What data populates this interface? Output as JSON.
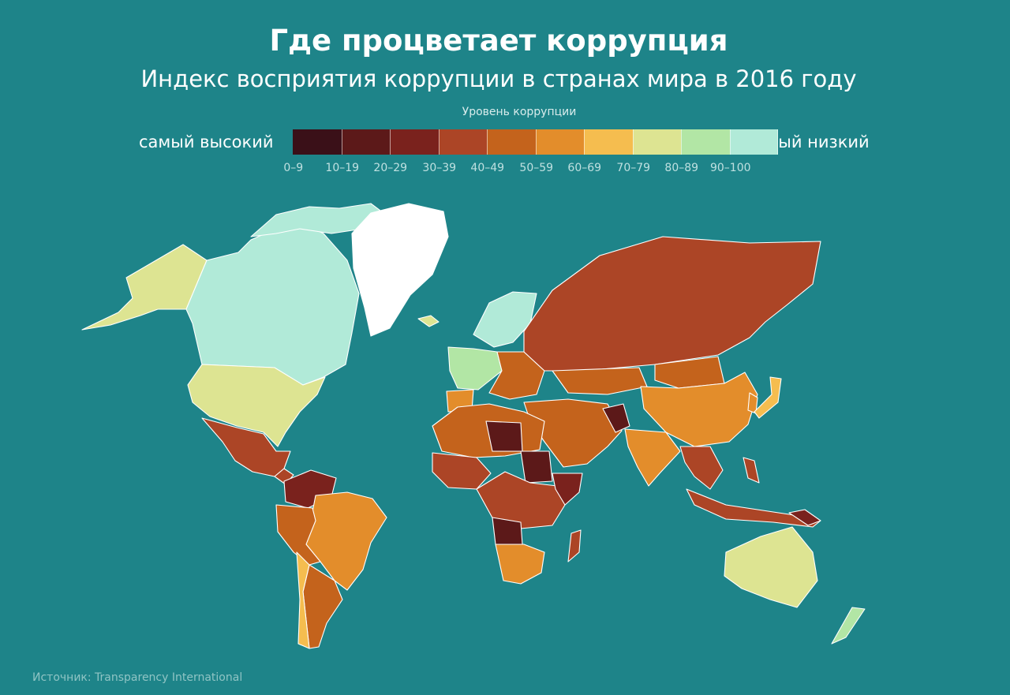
{
  "title": "Где процветает коррупция",
  "subtitle": "Индекс восприятия коррупции в странах мира в 2016 году",
  "legend": {
    "caption": "Уровень коррупции",
    "left_label": "самый высокий",
    "right_label": "самый низкий",
    "bins": [
      {
        "label": "0–9",
        "color": "#3a1018"
      },
      {
        "label": "10–19",
        "color": "#5c1919"
      },
      {
        "label": "20–29",
        "color": "#7a221d"
      },
      {
        "label": "30–39",
        "color": "#ac4526"
      },
      {
        "label": "40–49",
        "color": "#c4631c"
      },
      {
        "label": "50–59",
        "color": "#e38d2b"
      },
      {
        "label": "60–69",
        "color": "#f5bd4f"
      },
      {
        "label": "70–79",
        "color": "#dde492"
      },
      {
        "label": "80–89",
        "color": "#b2e6a5"
      },
      {
        "label": "90–100",
        "color": "#b1ead8"
      }
    ]
  },
  "source": "Источник: Transparency International",
  "map": {
    "no_data_color": "#ffffff",
    "background_color": "#1e8489"
  }
}
